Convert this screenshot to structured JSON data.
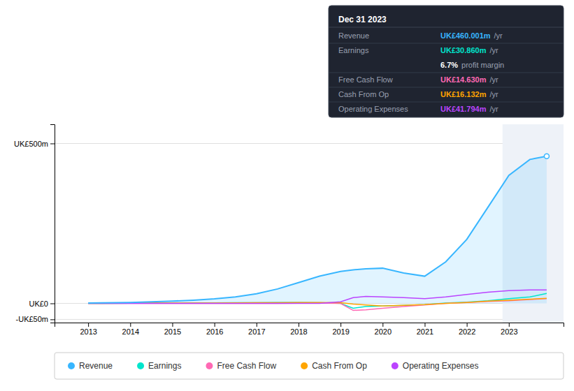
{
  "chart_data": {
    "type": "line",
    "x": [
      2013,
      2013.3,
      2014,
      2014.5,
      2015,
      2015.5,
      2016,
      2016.5,
      2017,
      2017.5,
      2018,
      2018.5,
      2019,
      2019.3,
      2019.6,
      2020,
      2020.5,
      2021,
      2021.5,
      2022,
      2022.5,
      2023,
      2023.5,
      2023.9
    ],
    "series": [
      {
        "name": "Revenue",
        "color": "#38b6ff",
        "type": "area",
        "values": [
          1,
          1.5,
          3,
          5,
          7,
          10,
          14,
          20,
          30,
          45,
          65,
          85,
          100,
          105,
          108,
          110,
          95,
          85,
          130,
          200,
          300,
          400,
          450,
          460
        ]
      },
      {
        "name": "Earnings",
        "color": "#00e5cc",
        "type": "line",
        "values": [
          0,
          0,
          0.5,
          1,
          1,
          1.5,
          1.5,
          2,
          2,
          2.5,
          2.5,
          2,
          0,
          -15,
          -10,
          -8,
          -6,
          -4,
          1,
          4,
          8,
          15,
          20,
          31
        ]
      },
      {
        "name": "Free Cash Flow",
        "color": "#ff69b4",
        "type": "line",
        "values": [
          0,
          0,
          0,
          0,
          0,
          0,
          0,
          0,
          0,
          0,
          0.5,
          0.5,
          0,
          -22,
          -20,
          -15,
          -10,
          -5,
          0,
          3,
          6,
          8,
          12,
          15
        ]
      },
      {
        "name": "Cash From Op",
        "color": "#ffa500",
        "type": "line",
        "values": [
          0,
          0,
          0.5,
          1,
          1,
          1,
          1,
          1.5,
          2,
          2,
          2.5,
          2.5,
          2,
          -2,
          -5,
          -8,
          -6,
          -4,
          0,
          3,
          7,
          10,
          13,
          16
        ]
      },
      {
        "name": "Operating Expenses",
        "color": "#bb44ff",
        "type": "line",
        "values": [
          0,
          0,
          0,
          0,
          0,
          0,
          0,
          0,
          0,
          0,
          0,
          0,
          5,
          18,
          22,
          20,
          18,
          15,
          20,
          28,
          35,
          40,
          42,
          42
        ]
      }
    ],
    "xlim": [
      2012.2,
      2024.3
    ],
    "xticks": [
      2013,
      2014,
      2015,
      2016,
      2017,
      2018,
      2019,
      2020,
      2021,
      2022,
      2023
    ],
    "ylim": [
      -60,
      560
    ],
    "yticks": [
      {
        "value": -50,
        "label": "-UK£50m"
      },
      {
        "value": 0,
        "label": "UK£0"
      },
      {
        "value": 500,
        "label": "UK£500m"
      }
    ],
    "grid": true,
    "legend": "bottom",
    "annotations": [
      {
        "text": "Dec 31 2023"
      },
      {
        "label": "Revenue",
        "text": "UK£460.001m",
        "suffix": "/yr",
        "color": "#38b6ff"
      },
      {
        "label": "Earnings",
        "text": "UK£30.860m",
        "suffix": "/yr",
        "color": "#00e5cc"
      },
      {
        "text": "6.7%",
        "suffix": "profit margin",
        "color": "#ffffff"
      },
      {
        "label": "Free Cash Flow",
        "text": "UK£14.630m",
        "suffix": "/yr",
        "color": "#ff69b4"
      },
      {
        "label": "Cash From Op",
        "text": "UK£16.132m",
        "suffix": "/yr",
        "color": "#ffa500"
      },
      {
        "label": "Operating Expenses",
        "text": "UK£41.794m",
        "suffix": "/yr",
        "color": "#bb44ff"
      },
      {
        "x0": 2022.85,
        "x1": 2024.3
      }
    ]
  }
}
